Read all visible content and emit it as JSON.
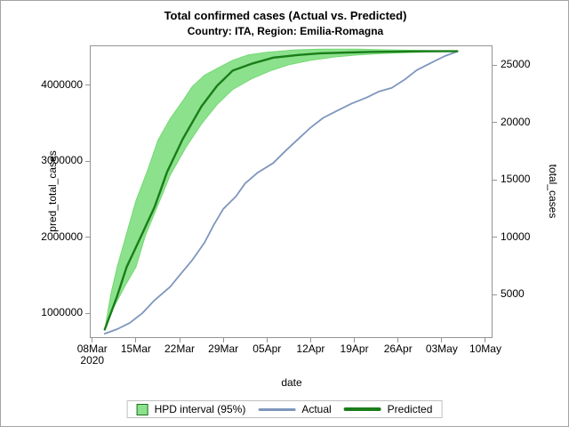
{
  "header": {
    "title": "Total confirmed cases (Actual vs. Predicted)",
    "subtitle": "Country: ITA, Region: Emilia-Romagna"
  },
  "colors": {
    "band_fill": "#8ce28c",
    "band_edge": "#72d872",
    "predicted_line": "#1a7d1a",
    "actual_line": "#7e96bd",
    "axis_frame": "#949494",
    "legend_border": "#c0c0c0",
    "figure_border": "#a3a3a3"
  },
  "chart_data": {
    "type": "line",
    "title": "Total confirmed cases (Actual vs. Predicted)",
    "subtitle": "Country: ITA, Region: Emilia-Romagna",
    "grid": false,
    "legend_position": "bottom",
    "x_unit": "days since 08Mar2020",
    "axes": {
      "x": {
        "label": "date",
        "min_day": -0.25,
        "max_day": 64,
        "ticks": [
          {
            "day": 0,
            "label": "08Mar",
            "sub": "2020"
          },
          {
            "day": 7,
            "label": "15Mar"
          },
          {
            "day": 14,
            "label": "22Mar"
          },
          {
            "day": 21,
            "label": "29Mar"
          },
          {
            "day": 28,
            "label": "05Apr"
          },
          {
            "day": 35,
            "label": "12Apr"
          },
          {
            "day": 42,
            "label": "19Apr"
          },
          {
            "day": 49,
            "label": "26Apr"
          },
          {
            "day": 56,
            "label": "03May"
          },
          {
            "day": 63,
            "label": "10May"
          }
        ]
      },
      "y_left": {
        "label": "pred_total_cases",
        "min": 690000,
        "max": 4510000,
        "ticks": [
          {
            "value": 1000000,
            "label": "1000000"
          },
          {
            "value": 2000000,
            "label": "2000000"
          },
          {
            "value": 3000000,
            "label": "3000000"
          },
          {
            "value": 4000000,
            "label": "4000000"
          }
        ]
      },
      "y_right": {
        "label": "total_cases",
        "min": 1300,
        "max": 26660,
        "ticks": [
          {
            "value": 5000,
            "label": "5000"
          },
          {
            "value": 10000,
            "label": "10000"
          },
          {
            "value": 15000,
            "label": "15000"
          },
          {
            "value": 20000,
            "label": "20000"
          },
          {
            "value": 25000,
            "label": "25000"
          }
        ]
      }
    },
    "series": [
      {
        "name": "HPD interval (95%)",
        "type": "band",
        "axis": "left",
        "color": "#8ce28c",
        "upper": [
          [
            2,
            788000
          ],
          [
            3,
            1260000
          ],
          [
            4,
            1610000
          ],
          [
            5.5,
            2050000
          ],
          [
            7,
            2480000
          ],
          [
            9,
            2910000
          ],
          [
            10.5,
            3270000
          ],
          [
            12.5,
            3560000
          ],
          [
            14.5,
            3790000
          ],
          [
            16,
            3980000
          ],
          [
            18,
            4130000
          ],
          [
            20.5,
            4240000
          ],
          [
            22.5,
            4325000
          ],
          [
            25,
            4395000
          ],
          [
            28,
            4430000
          ],
          [
            32.5,
            4462000
          ],
          [
            36.5,
            4472000
          ],
          [
            42.5,
            4472000
          ],
          [
            48,
            4462000
          ],
          [
            52,
            4456000
          ],
          [
            57,
            4447000
          ]
        ],
        "lower": [
          [
            2,
            788000
          ],
          [
            3.5,
            1090000
          ],
          [
            5.5,
            1400000
          ],
          [
            7,
            1610000
          ],
          [
            8.5,
            2020000
          ],
          [
            10.5,
            2420000
          ],
          [
            12.5,
            2820000
          ],
          [
            15,
            3180000
          ],
          [
            17.5,
            3490000
          ],
          [
            20,
            3745000
          ],
          [
            22.5,
            3942000
          ],
          [
            25.5,
            4081000
          ],
          [
            28.5,
            4186000
          ],
          [
            31.5,
            4267000
          ],
          [
            35,
            4325000
          ],
          [
            39,
            4371000
          ],
          [
            42.5,
            4395000
          ],
          [
            46.5,
            4415000
          ],
          [
            51,
            4428000
          ],
          [
            55,
            4438000
          ],
          [
            57,
            4442000
          ]
        ]
      },
      {
        "name": "Actual",
        "type": "line",
        "axis": "right",
        "color": "#7e96bd",
        "width": 1.8,
        "points": [
          [
            2,
            1600
          ],
          [
            4,
            2000
          ],
          [
            6,
            2530
          ],
          [
            8,
            3380
          ],
          [
            10,
            4530
          ],
          [
            12.5,
            5700
          ],
          [
            14,
            6700
          ],
          [
            16,
            8000
          ],
          [
            18,
            9550
          ],
          [
            19.5,
            11100
          ],
          [
            21,
            12480
          ],
          [
            23,
            13550
          ],
          [
            24.5,
            14700
          ],
          [
            26.5,
            15640
          ],
          [
            29,
            16480
          ],
          [
            31,
            17560
          ],
          [
            33,
            18570
          ],
          [
            35,
            19570
          ],
          [
            37,
            20420
          ],
          [
            39.5,
            21110
          ],
          [
            41.5,
            21650
          ],
          [
            44,
            22190
          ],
          [
            46,
            22730
          ],
          [
            48,
            23040
          ],
          [
            50,
            23730
          ],
          [
            52,
            24580
          ],
          [
            54.5,
            25270
          ],
          [
            56.5,
            25810
          ],
          [
            58.5,
            26200
          ]
        ]
      },
      {
        "name": "Predicted",
        "type": "line",
        "axis": "left",
        "color": "#1a7d1a",
        "width": 2.4,
        "points": [
          [
            2,
            790000
          ],
          [
            4,
            1230000
          ],
          [
            5.5,
            1610000
          ],
          [
            7,
            1870000
          ],
          [
            10,
            2400000
          ],
          [
            12,
            2860000
          ],
          [
            14.5,
            3290000
          ],
          [
            17.5,
            3720000
          ],
          [
            20,
            3990000
          ],
          [
            22.5,
            4190000
          ],
          [
            25.5,
            4280000
          ],
          [
            29,
            4360000
          ],
          [
            33,
            4395000
          ],
          [
            36.5,
            4418000
          ],
          [
            41,
            4428000
          ],
          [
            45,
            4436000
          ],
          [
            49.5,
            4441000
          ],
          [
            53.5,
            4444000
          ],
          [
            58.5,
            4445000
          ]
        ]
      }
    ]
  }
}
